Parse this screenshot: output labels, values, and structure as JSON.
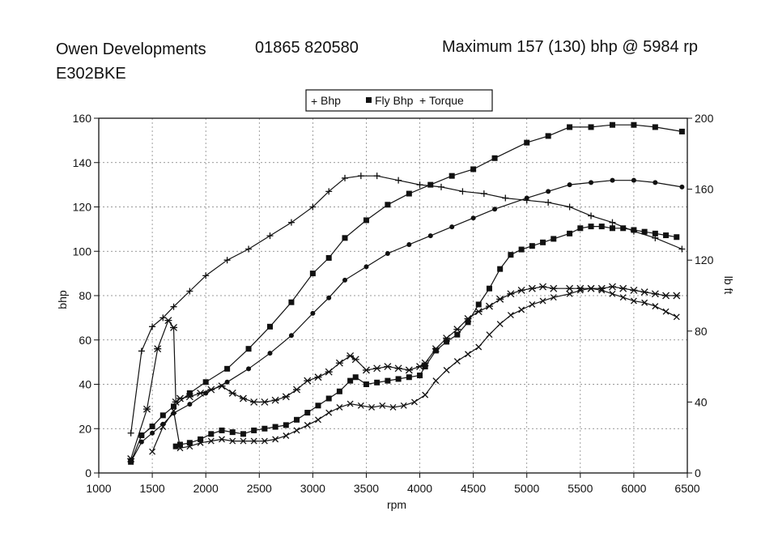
{
  "header": {
    "company": "Owen Developments",
    "phone": "01865 820580",
    "maximum": "Maximum 157 (130) bhp @ 5984 rp",
    "registration": "E302BKE"
  },
  "chart_data": {
    "type": "line",
    "title": "",
    "xlabel": "rpm",
    "ylabel": "bhp",
    "y2label": "lb ft",
    "xlim": [
      1000,
      6500
    ],
    "ylim": [
      0,
      160
    ],
    "y2lim": [
      0,
      200
    ],
    "x_ticks": [
      1000,
      1500,
      2000,
      2500,
      3000,
      3500,
      4000,
      4500,
      5000,
      5500,
      6000,
      6500
    ],
    "y_ticks": [
      0,
      20,
      40,
      60,
      80,
      100,
      120,
      140,
      160
    ],
    "y2_ticks": [
      0,
      40,
      80,
      120,
      160,
      200
    ],
    "grid": true,
    "legend": {
      "position": "top-center",
      "entries": [
        "Bhp",
        "Fly Bhp",
        "Torque"
      ]
    },
    "series": [
      {
        "name": "Bhp",
        "axis": "bhp",
        "marker": "plus",
        "points": [
          [
            1300,
            18
          ],
          [
            1400,
            55
          ],
          [
            1500,
            66
          ],
          [
            1600,
            70
          ],
          [
            1700,
            75
          ],
          [
            1850,
            82
          ],
          [
            2000,
            89
          ],
          [
            2200,
            96
          ],
          [
            2400,
            101
          ],
          [
            2600,
            107
          ],
          [
            2800,
            113
          ],
          [
            3000,
            120
          ],
          [
            3150,
            127
          ],
          [
            3300,
            133
          ],
          [
            3450,
            134
          ],
          [
            3600,
            134
          ],
          [
            3800,
            132
          ],
          [
            4000,
            130
          ],
          [
            4200,
            129
          ],
          [
            4400,
            127
          ],
          [
            4600,
            126
          ],
          [
            4800,
            124
          ],
          [
            5000,
            123
          ],
          [
            5200,
            122
          ],
          [
            5400,
            120
          ],
          [
            5600,
            116
          ],
          [
            5800,
            113
          ],
          [
            6000,
            109
          ],
          [
            6200,
            106
          ],
          [
            6450,
            101
          ]
        ]
      },
      {
        "name": "Fly Bhp",
        "axis": "bhp",
        "marker": "square",
        "points": [
          [
            1300,
            5
          ],
          [
            1400,
            17
          ],
          [
            1500,
            21
          ],
          [
            1600,
            26
          ],
          [
            1700,
            30
          ],
          [
            1850,
            36
          ],
          [
            2000,
            41
          ],
          [
            2200,
            47
          ],
          [
            2400,
            56
          ],
          [
            2600,
            66
          ],
          [
            2800,
            77
          ],
          [
            3000,
            90
          ],
          [
            3150,
            97
          ],
          [
            3300,
            106
          ],
          [
            3500,
            114
          ],
          [
            3700,
            121
          ],
          [
            3900,
            126
          ],
          [
            4100,
            130
          ],
          [
            4300,
            134
          ],
          [
            4500,
            137
          ],
          [
            4700,
            142
          ],
          [
            5000,
            149
          ],
          [
            5200,
            152
          ],
          [
            5400,
            156
          ],
          [
            5600,
            156
          ],
          [
            5800,
            157
          ],
          [
            6000,
            157
          ],
          [
            6200,
            156
          ],
          [
            6450,
            154
          ]
        ]
      },
      {
        "name": "",
        "axis": "bhp",
        "marker": "dot",
        "points": [
          [
            1300,
            5
          ],
          [
            1400,
            14
          ],
          [
            1500,
            18
          ],
          [
            1600,
            22
          ],
          [
            1700,
            27
          ],
          [
            1850,
            31
          ],
          [
            2000,
            36
          ],
          [
            2200,
            41
          ],
          [
            2400,
            47
          ],
          [
            2600,
            54
          ],
          [
            2800,
            62
          ],
          [
            3000,
            72
          ],
          [
            3150,
            79
          ],
          [
            3300,
            87
          ],
          [
            3500,
            93
          ],
          [
            3700,
            99
          ],
          [
            3900,
            103
          ],
          [
            4100,
            107
          ],
          [
            4300,
            111
          ],
          [
            4500,
            115
          ],
          [
            4700,
            119
          ],
          [
            5000,
            124
          ],
          [
            5200,
            127
          ],
          [
            5400,
            130
          ],
          [
            5600,
            131
          ],
          [
            5800,
            132
          ],
          [
            6000,
            132
          ],
          [
            6200,
            131
          ],
          [
            6450,
            129
          ]
        ]
      },
      {
        "name": "",
        "axis": "lbft",
        "marker": "square",
        "points": [
          [
            1720,
            15
          ],
          [
            1760,
            16
          ],
          [
            1850,
            17
          ],
          [
            1950,
            19
          ],
          [
            2050,
            22
          ],
          [
            2150,
            24
          ],
          [
            2250,
            23
          ],
          [
            2350,
            22
          ],
          [
            2450,
            24
          ],
          [
            2550,
            25
          ],
          [
            2650,
            26
          ],
          [
            2750,
            27
          ],
          [
            2850,
            30
          ],
          [
            2950,
            34
          ],
          [
            3050,
            38
          ],
          [
            3150,
            42
          ],
          [
            3250,
            46
          ],
          [
            3350,
            52
          ],
          [
            3400,
            54
          ],
          [
            3500,
            50
          ],
          [
            3600,
            51
          ],
          [
            3700,
            52
          ],
          [
            3800,
            53
          ],
          [
            3900,
            54
          ],
          [
            4000,
            55
          ],
          [
            4050,
            60
          ],
          [
            4150,
            69
          ],
          [
            4250,
            74
          ],
          [
            4350,
            78
          ],
          [
            4450,
            85
          ],
          [
            4550,
            95
          ],
          [
            4650,
            104
          ],
          [
            4750,
            115
          ],
          [
            4850,
            123
          ],
          [
            4950,
            126
          ],
          [
            5050,
            128
          ],
          [
            5150,
            130
          ],
          [
            5250,
            132
          ],
          [
            5400,
            135
          ],
          [
            5500,
            138
          ],
          [
            5600,
            139
          ],
          [
            5700,
            139
          ],
          [
            5800,
            138
          ],
          [
            5900,
            138
          ],
          [
            6000,
            137
          ],
          [
            6100,
            136
          ],
          [
            6200,
            135
          ],
          [
            6300,
            134
          ],
          [
            6400,
            133
          ]
        ]
      },
      {
        "name": "",
        "axis": "lbft",
        "marker": "star",
        "points": [
          [
            1300,
            8
          ],
          [
            1450,
            36
          ],
          [
            1550,
            70
          ],
          [
            1650,
            86
          ],
          [
            1700,
            82
          ],
          [
            1720,
            40
          ],
          [
            1760,
            42
          ],
          [
            1850,
            43
          ],
          [
            1950,
            45
          ],
          [
            2050,
            47
          ],
          [
            2150,
            49
          ],
          [
            2250,
            45
          ],
          [
            2350,
            42
          ],
          [
            2450,
            40
          ],
          [
            2550,
            40
          ],
          [
            2650,
            41
          ],
          [
            2750,
            43
          ],
          [
            2850,
            47
          ],
          [
            2950,
            52
          ],
          [
            3050,
            54
          ],
          [
            3150,
            57
          ],
          [
            3250,
            62
          ],
          [
            3350,
            66
          ],
          [
            3400,
            64
          ],
          [
            3500,
            58
          ],
          [
            3600,
            59
          ],
          [
            3700,
            60
          ],
          [
            3800,
            59
          ],
          [
            3900,
            58
          ],
          [
            4000,
            60
          ],
          [
            4050,
            62
          ],
          [
            4150,
            70
          ],
          [
            4250,
            76
          ],
          [
            4350,
            81
          ],
          [
            4450,
            87
          ],
          [
            4550,
            91
          ],
          [
            4650,
            94
          ],
          [
            4750,
            98
          ],
          [
            4850,
            101
          ],
          [
            4950,
            103
          ],
          [
            5050,
            104
          ],
          [
            5150,
            105
          ],
          [
            5250,
            104
          ],
          [
            5400,
            104
          ],
          [
            5500,
            104
          ],
          [
            5600,
            104
          ],
          [
            5700,
            104
          ],
          [
            5800,
            105
          ],
          [
            5900,
            104
          ],
          [
            6000,
            103
          ],
          [
            6100,
            102
          ],
          [
            6200,
            101
          ],
          [
            6300,
            100
          ],
          [
            6400,
            100
          ]
        ]
      },
      {
        "name": "",
        "axis": "lbft",
        "marker": "x",
        "points": [
          [
            1500,
            12
          ],
          [
            1600,
            26
          ],
          [
            1700,
            35
          ],
          [
            1760,
            14
          ],
          [
            1850,
            15
          ],
          [
            1950,
            17
          ],
          [
            2050,
            18
          ],
          [
            2150,
            19
          ],
          [
            2250,
            18
          ],
          [
            2350,
            18
          ],
          [
            2450,
            18
          ],
          [
            2550,
            18
          ],
          [
            2650,
            19
          ],
          [
            2750,
            21
          ],
          [
            2850,
            24
          ],
          [
            2950,
            27
          ],
          [
            3050,
            30
          ],
          [
            3150,
            34
          ],
          [
            3250,
            37
          ],
          [
            3350,
            39
          ],
          [
            3450,
            38
          ],
          [
            3550,
            37
          ],
          [
            3650,
            38
          ],
          [
            3750,
            37
          ],
          [
            3850,
            38
          ],
          [
            3950,
            40
          ],
          [
            4050,
            44
          ],
          [
            4150,
            52
          ],
          [
            4250,
            58
          ],
          [
            4350,
            63
          ],
          [
            4450,
            67
          ],
          [
            4550,
            71
          ],
          [
            4650,
            78
          ],
          [
            4750,
            84
          ],
          [
            4850,
            89
          ],
          [
            4950,
            92
          ],
          [
            5050,
            95
          ],
          [
            5150,
            97
          ],
          [
            5250,
            99
          ],
          [
            5400,
            101
          ],
          [
            5500,
            103
          ],
          [
            5600,
            104
          ],
          [
            5700,
            103
          ],
          [
            5800,
            101
          ],
          [
            5900,
            99
          ],
          [
            6000,
            97
          ],
          [
            6100,
            96
          ],
          [
            6200,
            94
          ],
          [
            6300,
            91
          ],
          [
            6400,
            88
          ]
        ]
      }
    ]
  }
}
